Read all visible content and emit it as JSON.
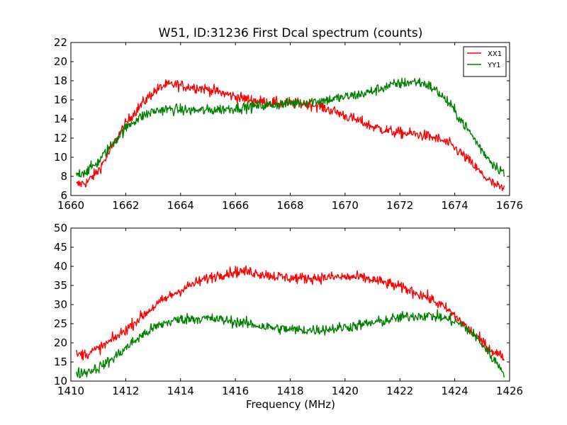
{
  "figure": {
    "title": "W51, ID:31236 First Dcal spectrum (counts)",
    "xlabel": "Frequency (MHz)"
  },
  "chart_data": [
    {
      "type": "line",
      "title": "W51, ID:31236 First Dcal spectrum (counts)",
      "xlabel": "",
      "ylabel": "",
      "xlim": [
        1660,
        1676
      ],
      "ylim": [
        6,
        22
      ],
      "xticks": [
        1660,
        1662,
        1664,
        1666,
        1668,
        1670,
        1672,
        1674,
        1676
      ],
      "yticks": [
        6,
        8,
        10,
        12,
        14,
        16,
        18,
        20,
        22
      ],
      "grid": false,
      "legend": "top-right",
      "x_range": [
        1660.2,
        1675.8
      ],
      "series": [
        {
          "name": "XX1",
          "color": "#ff0000",
          "x": [
            1660.2,
            1660.6,
            1661.0,
            1661.4,
            1661.8,
            1662.2,
            1662.6,
            1663.0,
            1663.4,
            1663.8,
            1664.2,
            1664.6,
            1665.0,
            1665.4,
            1665.8,
            1666.2,
            1666.6,
            1667.0,
            1667.4,
            1667.8,
            1668.2,
            1668.6,
            1669.0,
            1669.4,
            1669.8,
            1670.2,
            1670.6,
            1671.0,
            1671.4,
            1671.8,
            1672.2,
            1672.6,
            1673.0,
            1673.4,
            1673.8,
            1674.2,
            1674.6,
            1675.0,
            1675.4,
            1675.8
          ],
          "values": [
            7.1,
            7.4,
            8.6,
            10.5,
            12.6,
            14.3,
            15.6,
            16.8,
            17.5,
            17.6,
            17.4,
            17.3,
            17.1,
            16.8,
            16.5,
            16.2,
            16.0,
            15.8,
            15.7,
            15.6,
            15.6,
            15.6,
            15.4,
            15.0,
            14.6,
            14.1,
            13.7,
            13.2,
            12.9,
            12.6,
            12.5,
            12.4,
            12.2,
            11.9,
            11.4,
            10.5,
            9.4,
            8.2,
            7.2,
            6.6
          ]
        },
        {
          "name": "YY1",
          "color": "#008000",
          "x": [
            1660.2,
            1660.6,
            1661.0,
            1661.4,
            1661.8,
            1662.2,
            1662.6,
            1663.0,
            1663.4,
            1663.8,
            1664.2,
            1664.6,
            1665.0,
            1665.4,
            1665.8,
            1666.2,
            1666.6,
            1667.0,
            1667.4,
            1667.8,
            1668.2,
            1668.6,
            1669.0,
            1669.4,
            1669.8,
            1670.2,
            1670.6,
            1671.0,
            1671.4,
            1671.8,
            1672.2,
            1672.6,
            1673.0,
            1673.4,
            1673.8,
            1674.2,
            1674.6,
            1675.0,
            1675.4,
            1675.8
          ],
          "values": [
            8.2,
            8.6,
            9.5,
            11.0,
            12.4,
            13.6,
            14.3,
            14.8,
            15.0,
            15.0,
            14.9,
            14.9,
            14.9,
            15.0,
            15.1,
            15.2,
            15.3,
            15.4,
            15.5,
            15.6,
            15.7,
            15.8,
            15.9,
            16.0,
            16.2,
            16.4,
            16.6,
            16.9,
            17.3,
            17.6,
            17.8,
            17.9,
            17.6,
            16.8,
            15.6,
            14.0,
            12.4,
            10.7,
            9.3,
            8.4
          ]
        }
      ]
    },
    {
      "type": "line",
      "title": "",
      "xlabel": "Frequency (MHz)",
      "ylabel": "",
      "xlim": [
        1410,
        1426
      ],
      "ylim": [
        10,
        50
      ],
      "xticks": [
        1410,
        1412,
        1414,
        1416,
        1418,
        1420,
        1422,
        1424,
        1426
      ],
      "yticks": [
        10,
        15,
        20,
        25,
        30,
        35,
        40,
        45,
        50
      ],
      "grid": false,
      "x_range": [
        1410.2,
        1425.8
      ],
      "series": [
        {
          "color": "#ff0000",
          "x": [
            1410.2,
            1410.6,
            1411.0,
            1411.4,
            1411.8,
            1412.2,
            1412.6,
            1413.0,
            1413.4,
            1413.8,
            1414.2,
            1414.6,
            1415.0,
            1415.4,
            1415.8,
            1416.2,
            1416.6,
            1417.0,
            1417.4,
            1417.8,
            1418.2,
            1418.6,
            1419.0,
            1419.4,
            1419.8,
            1420.2,
            1420.6,
            1421.0,
            1421.4,
            1421.8,
            1422.2,
            1422.6,
            1423.0,
            1423.4,
            1423.8,
            1424.2,
            1424.6,
            1425.0,
            1425.4,
            1425.8
          ],
          "values": [
            16.8,
            17.2,
            18.4,
            20.2,
            22.3,
            24.6,
            27.0,
            29.3,
            31.3,
            33.0,
            34.5,
            35.8,
            36.9,
            37.8,
            38.4,
            38.7,
            38.5,
            38.0,
            37.5,
            37.1,
            36.9,
            36.9,
            37.0,
            37.1,
            37.2,
            37.2,
            37.0,
            36.5,
            35.8,
            35.0,
            34.1,
            33.1,
            31.9,
            30.3,
            28.3,
            25.8,
            23.0,
            20.2,
            17.8,
            16.2
          ]
        },
        {
          "color": "#008000",
          "x": [
            1410.2,
            1410.6,
            1411.0,
            1411.4,
            1411.8,
            1412.2,
            1412.6,
            1413.0,
            1413.4,
            1413.8,
            1414.2,
            1414.6,
            1415.0,
            1415.4,
            1415.8,
            1416.2,
            1416.6,
            1417.0,
            1417.4,
            1417.8,
            1418.2,
            1418.6,
            1419.0,
            1419.4,
            1419.8,
            1420.2,
            1420.6,
            1421.0,
            1421.4,
            1421.8,
            1422.2,
            1422.6,
            1423.0,
            1423.4,
            1423.8,
            1424.2,
            1424.6,
            1425.0,
            1425.4,
            1425.8
          ],
          "values": [
            12.0,
            12.5,
            13.5,
            15.2,
            17.4,
            19.8,
            22.0,
            23.8,
            25.1,
            25.9,
            26.3,
            26.4,
            26.3,
            26.1,
            25.7,
            25.3,
            24.8,
            24.3,
            23.9,
            23.6,
            23.4,
            23.3,
            23.4,
            23.6,
            23.9,
            24.3,
            24.7,
            25.2,
            25.7,
            26.3,
            26.8,
            27.1,
            27.1,
            26.8,
            26.1,
            24.9,
            22.8,
            19.6,
            15.8,
            12.5
          ]
        }
      ]
    }
  ]
}
